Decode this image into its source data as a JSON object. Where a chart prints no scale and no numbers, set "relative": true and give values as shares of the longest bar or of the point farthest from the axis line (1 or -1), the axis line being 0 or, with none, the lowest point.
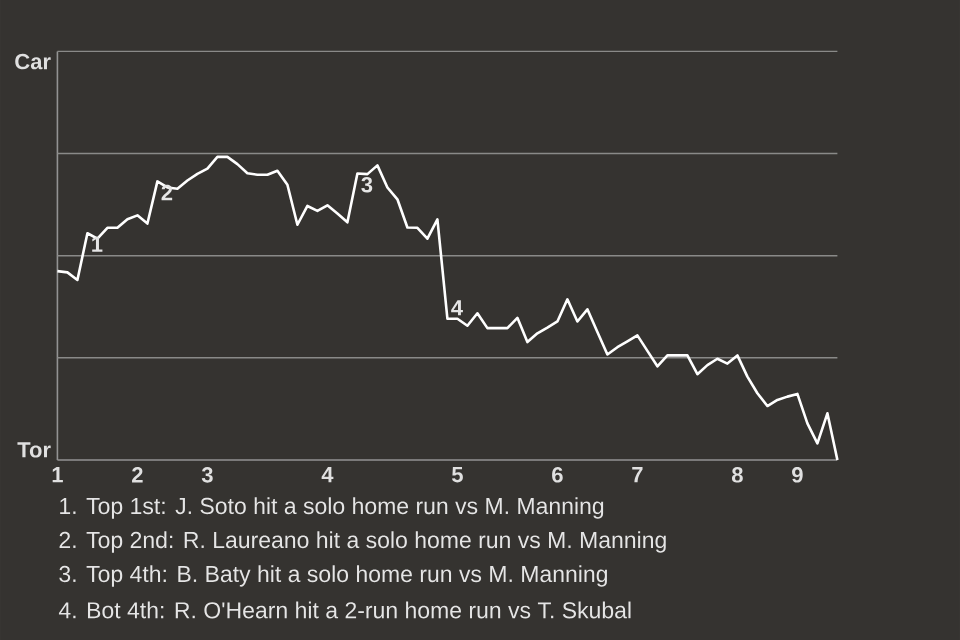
{
  "chart_data": {
    "type": "line",
    "relative": true,
    "categories": [
      "1",
      null,
      null,
      null,
      null,
      null,
      null,
      null,
      "2",
      null,
      null,
      null,
      null,
      null,
      null,
      "3",
      null,
      null,
      null,
      null,
      null,
      null,
      null,
      null,
      null,
      null,
      null,
      "4",
      null,
      null,
      null,
      null,
      null,
      null,
      null,
      null,
      null,
      null,
      null,
      null,
      "5",
      null,
      null,
      null,
      null,
      null,
      null,
      null,
      null,
      null,
      "6",
      null,
      null,
      null,
      null,
      null,
      null,
      null,
      "7",
      null,
      null,
      null,
      null,
      null,
      null,
      null,
      null,
      null,
      "8",
      null,
      null,
      null,
      null,
      null,
      "9",
      null,
      null,
      null,
      null
    ],
    "series": [
      {
        "color": "#ffffff",
        "line_style": "solid",
        "values": [
          0.623,
          0.619,
          0.594,
          0.748,
          0.73,
          0.766,
          0.766,
          0.794,
          0.807,
          0.78,
          0.919,
          0.899,
          0.895,
          0.922,
          0.944,
          0.961,
          1,
          1,
          0.976,
          0.946,
          0.941,
          0.941,
          0.954,
          0.908,
          0.776,
          0.838,
          0.822,
          0.84,
          0.813,
          0.784,
          0.945,
          0.943,
          0.972,
          0.899,
          0.86,
          0.767,
          0.766,
          0.73,
          0.794,
          0.466,
          0.466,
          0.443,
          0.484,
          0.435,
          0.435,
          0.435,
          0.469,
          0.389,
          0.418,
          0.437,
          0.457,
          0.53,
          0.457,
          0.497,
          0.422,
          0.348,
          0.372,
          0.391,
          0.411,
          0.36,
          0.309,
          0.345,
          0.345,
          0.345,
          0.283,
          0.313,
          0.334,
          0.318,
          0.345,
          0.275,
          0.22,
          0.178,
          0.198,
          0.209,
          0.218,
          0.121,
          0.055,
          0.154,
          0
        ]
      }
    ],
    "ref_lines": [
      {
        "axis": "y",
        "value": 0.337,
        "color": "#8a8a88"
      },
      {
        "axis": "y",
        "value": 0.674,
        "color": "#8a8a88"
      },
      {
        "axis": "y",
        "value": 1.011,
        "color": "#8a8a88"
      },
      {
        "axis": "y",
        "value": 1.348,
        "color": "#8a8a88"
      }
    ],
    "annotations": [
      "Car",
      "Tor",
      {
        "text": "1",
        "y": 0.748
      },
      {
        "text": "2",
        "y": 0.919
      },
      {
        "text": "3",
        "y": 0.945
      },
      {
        "text": "4",
        "y": 0.466
      },
      "1. Top 1st: J. Soto hit a solo home run vs M. Manning",
      "2. Top 2nd: R. Laureano hit a solo home run vs M. Manning",
      "3. Top 4th: B. Baty hit a solo home run vs M. Manning",
      "4. Bot 4th: R. O'Hearn hit a 2-run home run vs T. Skubal"
    ]
  }
}
